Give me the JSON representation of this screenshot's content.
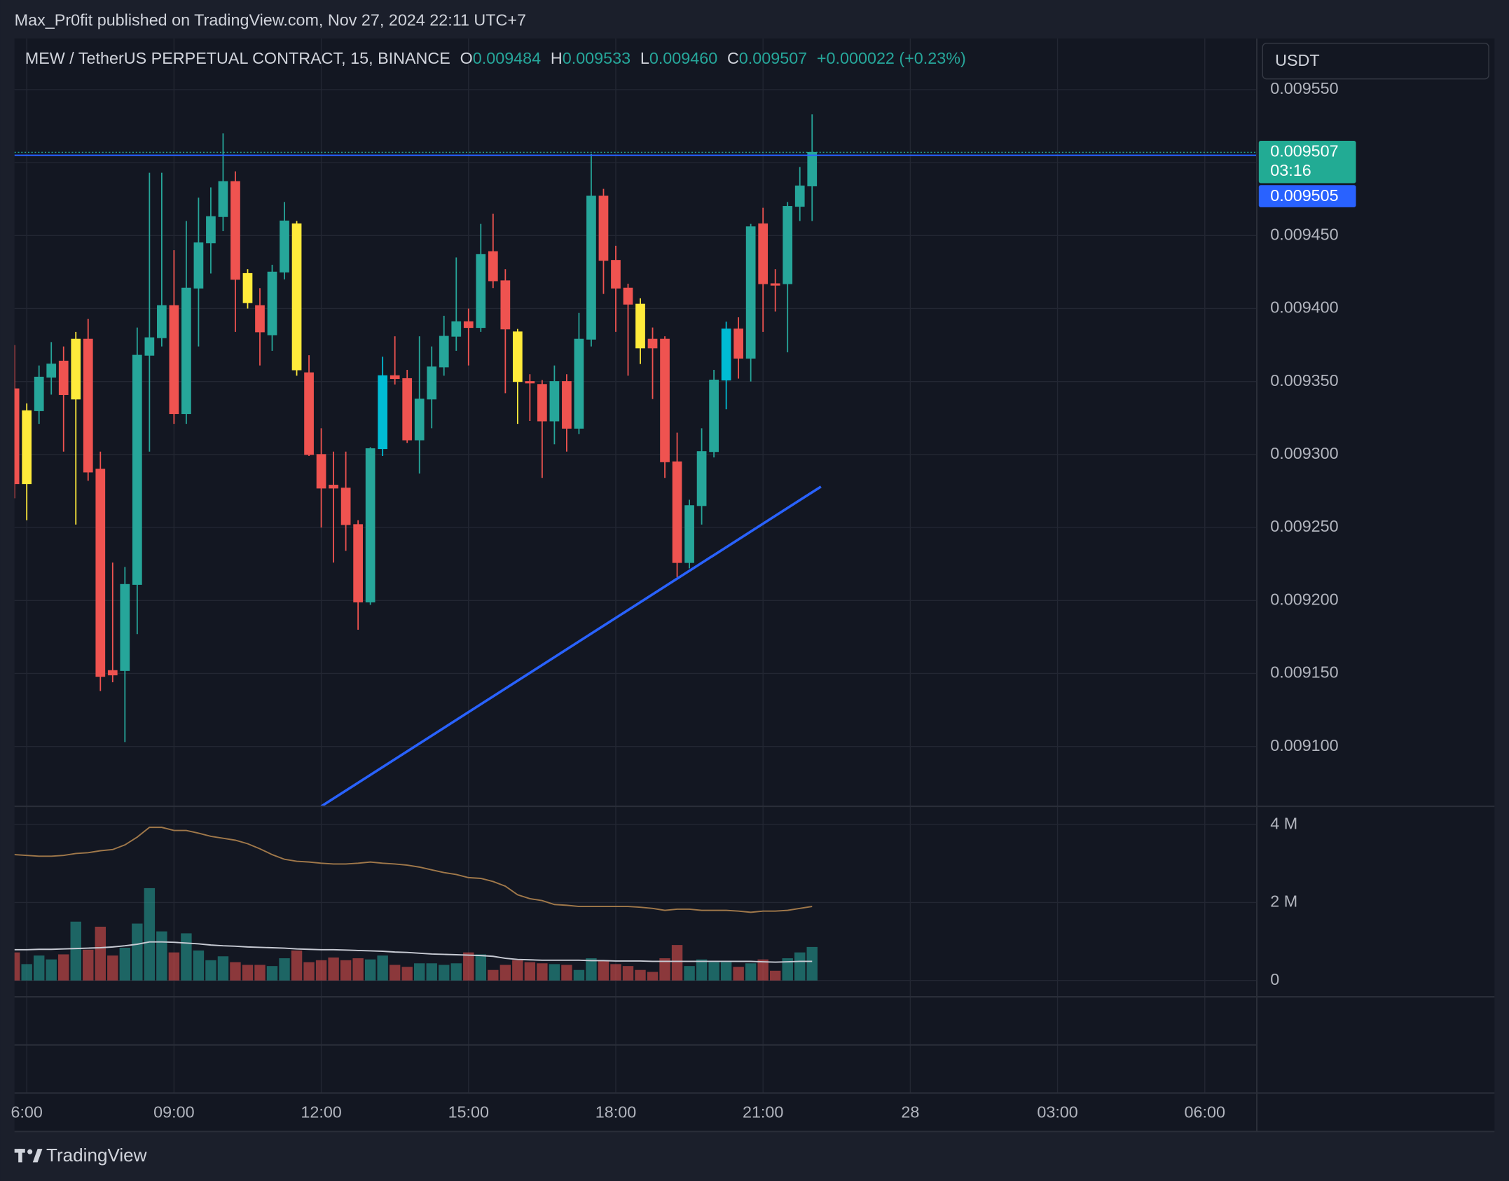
{
  "header": {
    "attribution": "Max_Pr0fit published on TradingView.com, Nov 27, 2024 22:11 UTC+7",
    "symbol": "MEW / TetherUS PERPETUAL CONTRACT, 15, BINANCE",
    "ohlc": [
      {
        "label": "O",
        "value": "0.009484"
      },
      {
        "label": "H",
        "value": "0.009533"
      },
      {
        "label": "L",
        "value": "0.009460"
      },
      {
        "label": "C",
        "value": "0.009507"
      }
    ],
    "change": "+0.000022 (+0.23%)"
  },
  "currency": "USDT",
  "footer": "TradingView",
  "chart_data": [
    {
      "type": "candlestick",
      "x": [
        5.75,
        6,
        6.25,
        6.5,
        6.75,
        7,
        7.25,
        7.5,
        7.75,
        8,
        8.25,
        8.5,
        8.75,
        9,
        9.25,
        9.5,
        9.75,
        10,
        10.25,
        10.5,
        10.75,
        11,
        11.25,
        11.5,
        11.75,
        12,
        12.25,
        12.5,
        12.75,
        13,
        13.25,
        13.5,
        13.75,
        14,
        14.25,
        14.5,
        14.75,
        15,
        15.25,
        15.5,
        15.75,
        16,
        16.25,
        16.5,
        16.75,
        17,
        17.25,
        17.5,
        17.75,
        18,
        18.25,
        18.5,
        18.75,
        19,
        19.25,
        19.5,
        19.75,
        20,
        20.25,
        20.5,
        20.75,
        21,
        21.25,
        21.5,
        21.75,
        22
      ],
      "open": [
        0.009345,
        0.00928,
        0.00933,
        0.009353,
        0.009364,
        0.009338,
        0.009379,
        0.00929,
        0.009152,
        0.009152,
        0.009211,
        0.009368,
        0.00938,
        0.009402,
        0.009328,
        0.009414,
        0.009445,
        0.009463,
        0.009487,
        0.009424,
        0.009402,
        0.009382,
        0.009425,
        0.009458,
        0.009356,
        0.0093,
        0.009279,
        0.009277,
        0.009252,
        0.009199,
        0.009304,
        0.009354,
        0.009352,
        0.00931,
        0.009338,
        0.00936,
        0.009381,
        0.009391,
        0.009387,
        0.009439,
        0.009419,
        0.009384,
        0.00935,
        0.009348,
        0.009323,
        0.00935,
        0.009318,
        0.009379,
        0.009477,
        0.009433,
        0.009414,
        0.009403,
        0.009379,
        0.009379,
        0.009295,
        0.009226,
        0.009265,
        0.009302,
        0.009351,
        0.009386,
        0.009366,
        0.009458,
        0.009417,
        0.009417,
        0.00947,
        0.009484
      ],
      "high": [
        0.009375,
        0.009335,
        0.009361,
        0.009377,
        0.009374,
        0.009384,
        0.009393,
        0.009302,
        0.009226,
        0.009223,
        0.009387,
        0.009493,
        0.009493,
        0.00944,
        0.00946,
        0.009476,
        0.009483,
        0.00952,
        0.009494,
        0.009427,
        0.009414,
        0.00943,
        0.009473,
        0.00946,
        0.009368,
        0.009318,
        0.009302,
        0.009302,
        0.009255,
        0.009305,
        0.009367,
        0.009381,
        0.009358,
        0.009381,
        0.009374,
        0.009395,
        0.009435,
        0.0094,
        0.009458,
        0.009465,
        0.009427,
        0.009386,
        0.009355,
        0.009351,
        0.009361,
        0.009355,
        0.009397,
        0.009506,
        0.009482,
        0.009443,
        0.009417,
        0.009407,
        0.009387,
        0.009381,
        0.009315,
        0.009269,
        0.009318,
        0.009358,
        0.009391,
        0.009394,
        0.009458,
        0.009469,
        0.009427,
        0.009473,
        0.009497,
        0.009533
      ],
      "low": [
        0.00927,
        0.009255,
        0.009321,
        0.009341,
        0.009302,
        0.009252,
        0.009282,
        0.009138,
        0.009144,
        0.009103,
        0.009177,
        0.009302,
        0.009374,
        0.009321,
        0.009321,
        0.009374,
        0.009424,
        0.009453,
        0.009384,
        0.0094,
        0.009361,
        0.009371,
        0.00942,
        0.009354,
        0.009299,
        0.00925,
        0.009226,
        0.009234,
        0.00918,
        0.009197,
        0.009299,
        0.009348,
        0.009308,
        0.009287,
        0.009318,
        0.009354,
        0.009371,
        0.009361,
        0.009384,
        0.009414,
        0.009342,
        0.009321,
        0.009323,
        0.009284,
        0.009307,
        0.009302,
        0.009314,
        0.009374,
        0.00941,
        0.009384,
        0.009354,
        0.009362,
        0.009338,
        0.009284,
        0.009216,
        0.009222,
        0.009252,
        0.009298,
        0.009331,
        0.009352,
        0.00935,
        0.009384,
        0.009398,
        0.00937,
        0.00946,
        0.00946
      ],
      "close": [
        0.00928,
        0.00933,
        0.009353,
        0.009362,
        0.009341,
        0.009379,
        0.009288,
        0.009148,
        0.009149,
        0.009211,
        0.009368,
        0.00938,
        0.009402,
        0.009328,
        0.009414,
        0.009445,
        0.009463,
        0.009487,
        0.00942,
        0.009404,
        0.009384,
        0.009425,
        0.00946,
        0.009358,
        0.0093,
        0.009277,
        0.009277,
        0.009252,
        0.009199,
        0.009304,
        0.009354,
        0.009352,
        0.00931,
        0.009338,
        0.00936,
        0.009381,
        0.009391,
        0.009387,
        0.009437,
        0.009419,
        0.009386,
        0.00935,
        0.009349,
        0.009323,
        0.00935,
        0.009318,
        0.009379,
        0.009477,
        0.009433,
        0.009414,
        0.009403,
        0.009373,
        0.009373,
        0.009295,
        0.009226,
        0.009265,
        0.009302,
        0.009351,
        0.009386,
        0.009366,
        0.009456,
        0.009417,
        0.009416,
        0.00947,
        0.009484,
        0.009507
      ],
      "colors": [
        "#ef5350",
        "#ffeb3b",
        "#26a69a",
        "#26a69a",
        "#ef5350",
        "#ffeb3b",
        "#ef5350",
        "#ef5350",
        "#ef5350",
        "#26a69a",
        "#26a69a",
        "#26a69a",
        "#26a69a",
        "#ef5350",
        "#26a69a",
        "#26a69a",
        "#26a69a",
        "#26a69a",
        "#ef5350",
        "#ffeb3b",
        "#ef5350",
        "#26a69a",
        "#26a69a",
        "#ffeb3b",
        "#ef5350",
        "#ef5350",
        "#ef5350",
        "#ef5350",
        "#ef5350",
        "#26a69a",
        "#00bcd4",
        "#ef5350",
        "#ef5350",
        "#26a69a",
        "#26a69a",
        "#26a69a",
        "#26a69a",
        "#ef5350",
        "#26a69a",
        "#ef5350",
        "#ef5350",
        "#ffeb3b",
        "#ef5350",
        "#ef5350",
        "#26a69a",
        "#ef5350",
        "#26a69a",
        "#26a69a",
        "#ef5350",
        "#ef5350",
        "#ef5350",
        "#ffeb3b",
        "#ef5350",
        "#ef5350",
        "#ef5350",
        "#26a69a",
        "#26a69a",
        "#26a69a",
        "#00bcd4",
        "#ef5350",
        "#26a69a",
        "#ef5350",
        "#ef5350",
        "#26a69a",
        "#26a69a",
        "#26a69a"
      ],
      "xlim": [
        5.75,
        31.06
      ],
      "ylim": [
        0.009059,
        0.009585
      ],
      "xticks": [
        {
          "value": 6,
          "label": "6:00"
        },
        {
          "value": 9,
          "label": "09:00"
        },
        {
          "value": 12,
          "label": "12:00"
        },
        {
          "value": 15,
          "label": "15:00"
        },
        {
          "value": 18,
          "label": "18:00"
        },
        {
          "value": 21,
          "label": "21:00"
        },
        {
          "value": 24,
          "label": "28"
        },
        {
          "value": 27,
          "label": "03:00"
        },
        {
          "value": 30,
          "label": "06:00"
        }
      ],
      "yticks": [
        {
          "value": 0.0091,
          "label": "0.009100"
        },
        {
          "value": 0.00915,
          "label": "0.009150"
        },
        {
          "value": 0.0092,
          "label": "0.009200"
        },
        {
          "value": 0.00925,
          "label": "0.009250"
        },
        {
          "value": 0.0093,
          "label": "0.009300"
        },
        {
          "value": 0.00935,
          "label": "0.009350"
        },
        {
          "value": 0.0094,
          "label": "0.009400"
        },
        {
          "value": 0.00945,
          "label": "0.009450"
        },
        {
          "value": 0.0095,
          "label": "0.009500"
        },
        {
          "value": 0.00955,
          "label": "0.009550"
        }
      ],
      "grid": true,
      "last_price": {
        "value": 0.009507,
        "label": "0.009507",
        "countdown": "03:16",
        "color": "#22ab94"
      },
      "hlines": [
        {
          "value": 0.009505,
          "label": "0.009505",
          "color": "#2962ff"
        }
      ],
      "trendlines": [
        {
          "x": [
            12.0,
            22.18
          ],
          "y": [
            0.009059,
            0.009278
          ],
          "color": "#2962ff"
        }
      ]
    },
    {
      "type": "bar",
      "x": [
        5.75,
        6,
        6.25,
        6.5,
        6.75,
        7,
        7.25,
        7.5,
        7.75,
        8,
        8.25,
        8.5,
        8.75,
        9,
        9.25,
        9.5,
        9.75,
        10,
        10.25,
        10.5,
        10.75,
        11,
        11.25,
        11.5,
        11.75,
        12,
        12.25,
        12.5,
        12.75,
        13,
        13.25,
        13.5,
        13.75,
        14,
        14.25,
        14.5,
        14.75,
        15,
        15.25,
        15.5,
        15.75,
        16,
        16.25,
        16.5,
        16.75,
        17,
        17.25,
        17.5,
        17.75,
        18,
        18.25,
        18.5,
        18.75,
        19,
        19.25,
        19.5,
        19.75,
        20,
        20.25,
        20.5,
        20.75,
        21,
        21.25,
        21.5,
        21.75,
        22
      ],
      "values": [
        720000,
        420000,
        640000,
        540000,
        670000,
        1510000,
        790000,
        1380000,
        640000,
        840000,
        1460000,
        2370000,
        1260000,
        720000,
        1210000,
        770000,
        520000,
        620000,
        470000,
        400000,
        400000,
        370000,
        570000,
        770000,
        470000,
        520000,
        590000,
        520000,
        570000,
        540000,
        640000,
        400000,
        350000,
        440000,
        440000,
        400000,
        440000,
        720000,
        670000,
        270000,
        400000,
        520000,
        470000,
        440000,
        420000,
        400000,
        270000,
        570000,
        520000,
        420000,
        370000,
        270000,
        220000,
        570000,
        910000,
        370000,
        540000,
        470000,
        470000,
        350000,
        440000,
        540000,
        250000,
        570000,
        720000,
        860000
      ],
      "colors": [
        "#ef5350",
        "#26a69a",
        "#26a69a",
        "#26a69a",
        "#ef5350",
        "#26a69a",
        "#ef5350",
        "#ef5350",
        "#ef5350",
        "#26a69a",
        "#26a69a",
        "#26a69a",
        "#26a69a",
        "#ef5350",
        "#26a69a",
        "#26a69a",
        "#26a69a",
        "#26a69a",
        "#ef5350",
        "#ef5350",
        "#ef5350",
        "#26a69a",
        "#26a69a",
        "#ef5350",
        "#ef5350",
        "#ef5350",
        "#ef5350",
        "#ef5350",
        "#ef5350",
        "#26a69a",
        "#26a69a",
        "#ef5350",
        "#ef5350",
        "#26a69a",
        "#26a69a",
        "#26a69a",
        "#26a69a",
        "#ef5350",
        "#26a69a",
        "#ef5350",
        "#ef5350",
        "#ef5350",
        "#ef5350",
        "#ef5350",
        "#26a69a",
        "#ef5350",
        "#26a69a",
        "#26a69a",
        "#ef5350",
        "#ef5350",
        "#ef5350",
        "#ef5350",
        "#ef5350",
        "#ef5350",
        "#ef5350",
        "#26a69a",
        "#26a69a",
        "#26a69a",
        "#26a69a",
        "#ef5350",
        "#26a69a",
        "#ef5350",
        "#ef5350",
        "#26a69a",
        "#26a69a",
        "#26a69a"
      ],
      "lines": [
        {
          "color": "#a0784a",
          "values": [
            3230000,
            3210000,
            3190000,
            3190000,
            3210000,
            3260000,
            3280000,
            3330000,
            3360000,
            3480000,
            3680000,
            3930000,
            3930000,
            3850000,
            3850000,
            3780000,
            3700000,
            3650000,
            3600000,
            3510000,
            3380000,
            3230000,
            3110000,
            3060000,
            3040000,
            3010000,
            2990000,
            2990000,
            3010000,
            3040000,
            3010000,
            2990000,
            2960000,
            2910000,
            2840000,
            2770000,
            2720000,
            2640000,
            2620000,
            2540000,
            2420000,
            2200000,
            2100000,
            2050000,
            1950000,
            1930000,
            1900000,
            1900000,
            1900000,
            1900000,
            1900000,
            1880000,
            1850000,
            1800000,
            1830000,
            1830000,
            1800000,
            1800000,
            1800000,
            1780000,
            1750000,
            1780000,
            1780000,
            1800000,
            1850000,
            1900000
          ]
        },
        {
          "color": "#c8cbd4",
          "values": [
            790000,
            790000,
            800000,
            800000,
            810000,
            820000,
            830000,
            840000,
            860000,
            890000,
            930000,
            990000,
            990000,
            980000,
            960000,
            940000,
            910000,
            890000,
            880000,
            860000,
            850000,
            840000,
            830000,
            810000,
            800000,
            790000,
            790000,
            780000,
            770000,
            760000,
            750000,
            730000,
            720000,
            700000,
            680000,
            670000,
            660000,
            650000,
            640000,
            620000,
            570000,
            540000,
            530000,
            520000,
            520000,
            520000,
            520000,
            510000,
            510000,
            500000,
            500000,
            500000,
            490000,
            490000,
            490000,
            490000,
            490000,
            490000,
            490000,
            490000,
            490000,
            480000,
            470000,
            480000,
            490000,
            490000
          ]
        }
      ],
      "xlim": [
        5.75,
        31.06
      ],
      "ylim": [
        -420000,
        4470000
      ],
      "yticks": [
        0,
        {
          "value": 2000000,
          "label": "2 M"
        },
        {
          "value": 4000000,
          "label": "4 M"
        }
      ],
      "grid": true
    }
  ]
}
